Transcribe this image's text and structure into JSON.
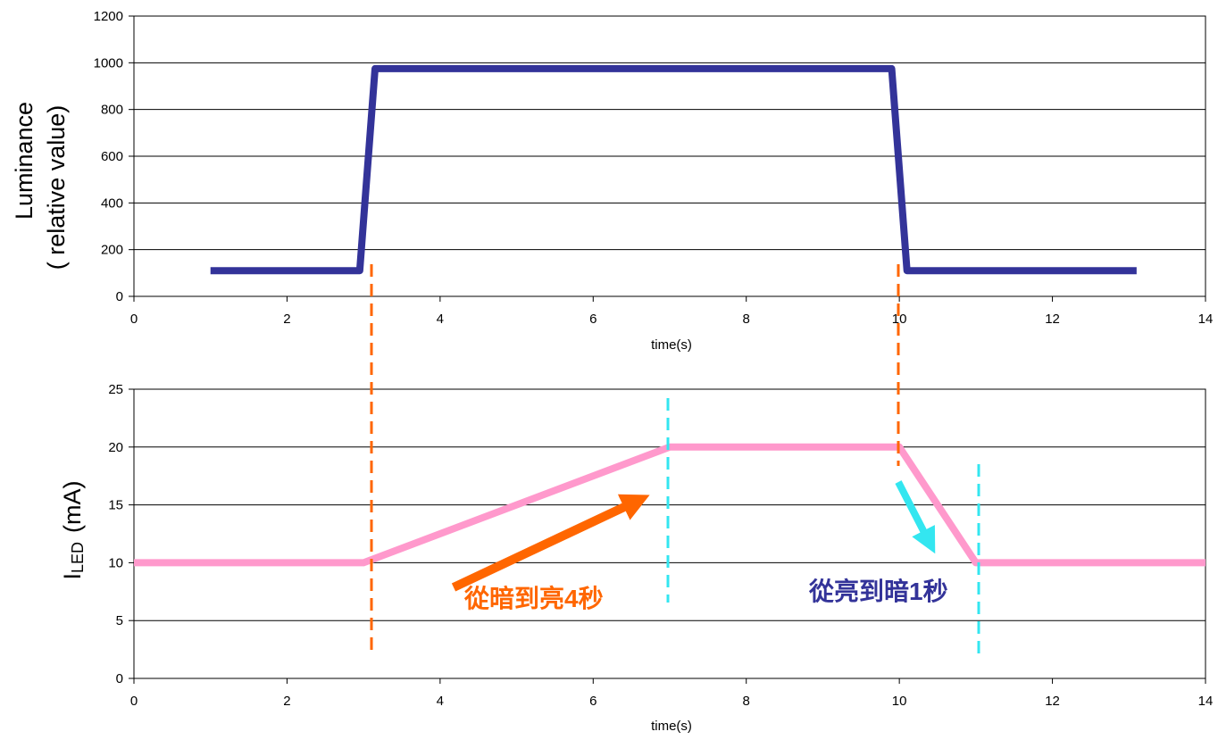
{
  "colors": {
    "luminance_line": "#333399",
    "current_line": "#ff99cc",
    "rise_marker": "#ff6600",
    "fall_marker": "#33e6f0",
    "annotation_rise": "#ff6600",
    "annotation_fall": "#333399",
    "grid": "#000000"
  },
  "chart_data": [
    {
      "type": "line",
      "xlabel": "time(s)",
      "ylabel_line1": "Luminance",
      "ylabel_line2": "( relative value)",
      "xlim": [
        0,
        14
      ],
      "ylim": [
        0,
        1200
      ],
      "xticks": [
        "0",
        "2",
        "4",
        "6",
        "8",
        "10",
        "12",
        "14"
      ],
      "yticks": [
        "0",
        "200",
        "400",
        "600",
        "800",
        "1000",
        "1200"
      ],
      "grid": "horizontal",
      "series": [
        {
          "x": [
            1.0,
            2.95,
            3.15,
            9.9,
            10.1,
            13.1
          ],
          "y": [
            110,
            110,
            975,
            975,
            110,
            110
          ]
        }
      ]
    },
    {
      "type": "line",
      "xlabel": "time(s)",
      "ylabel_main": "I",
      "ylabel_sub": "LED",
      "ylabel_unit": "(mA)",
      "xlim": [
        0,
        14
      ],
      "ylim": [
        0,
        25
      ],
      "xticks": [
        "0",
        "2",
        "4",
        "6",
        "8",
        "10",
        "12",
        "14"
      ],
      "yticks": [
        "0",
        "5",
        "10",
        "15",
        "20",
        "25"
      ],
      "grid": "horizontal",
      "series": [
        {
          "x": [
            0,
            3.0,
            7.0,
            10.0,
            11.0,
            14.0
          ],
          "y": [
            10,
            10,
            20,
            20,
            10,
            10
          ]
        }
      ]
    }
  ],
  "annotations": {
    "rise_text": "從暗到亮4秒",
    "fall_text": "從亮到暗1秒"
  }
}
